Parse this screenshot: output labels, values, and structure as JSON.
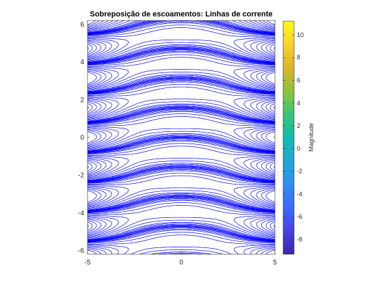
{
  "chart_data": {
    "type": "contour",
    "title": "Sobreposição de escoamentos: Linhas de corrente",
    "xlabel": "",
    "ylabel": "",
    "xlim": [
      -5,
      5
    ],
    "ylim": [
      -6.2,
      6.2
    ],
    "xticks": [
      "-5",
      "0",
      "5"
    ],
    "yticks": [
      "6",
      "4",
      "2",
      "0",
      "-2",
      "-4",
      "-6"
    ],
    "grid": false,
    "line_color": "#0000ff",
    "contour_levels": [
      -7.5,
      -7,
      -6.5,
      -6,
      -5.5,
      -5,
      -4.5,
      -4,
      -3.5,
      -3,
      -2.5,
      -2,
      -1.5,
      -1,
      -0.75,
      -0.5,
      -0.3,
      -0.15,
      0,
      0.15,
      0.3,
      0.5,
      0.75,
      1,
      1.5,
      2,
      2.5,
      3,
      3.5,
      4,
      4.5,
      5
    ],
    "colorbar": {
      "label": "Magnitude",
      "range": [
        -9.3,
        11.2
      ],
      "ticks": [
        "10",
        "8",
        "6",
        "4",
        "2",
        "0",
        "-2",
        "-4",
        "-6",
        "-8"
      ],
      "colormap": [
        "#3e26a8",
        "#4741e5",
        "#3b68fe",
        "#2f8ff0",
        "#1ea9d6",
        "#0fbdb1",
        "#38c679",
        "#8dc33a",
        "#dcb629",
        "#fcd12e",
        "#f9fb15"
      ]
    }
  }
}
